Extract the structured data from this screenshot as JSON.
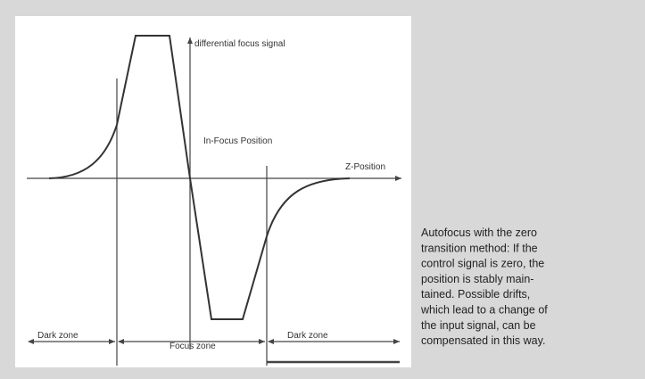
{
  "diagram": {
    "labels": {
      "y_axis": "differential focus signal",
      "x_axis": "Z-Position",
      "focus_point": "In-Focus Position",
      "zones": [
        "Dark zone",
        "Focus zone",
        "Dark zone"
      ]
    },
    "caption": [
      "Autofocus with the zero",
      "transition method: If the",
      "control signal is zero, the",
      "position is stably main-",
      "tained. Possible drifts,",
      "which lead to a change of",
      "the input signal, can be",
      "compensated in this way."
    ]
  }
}
